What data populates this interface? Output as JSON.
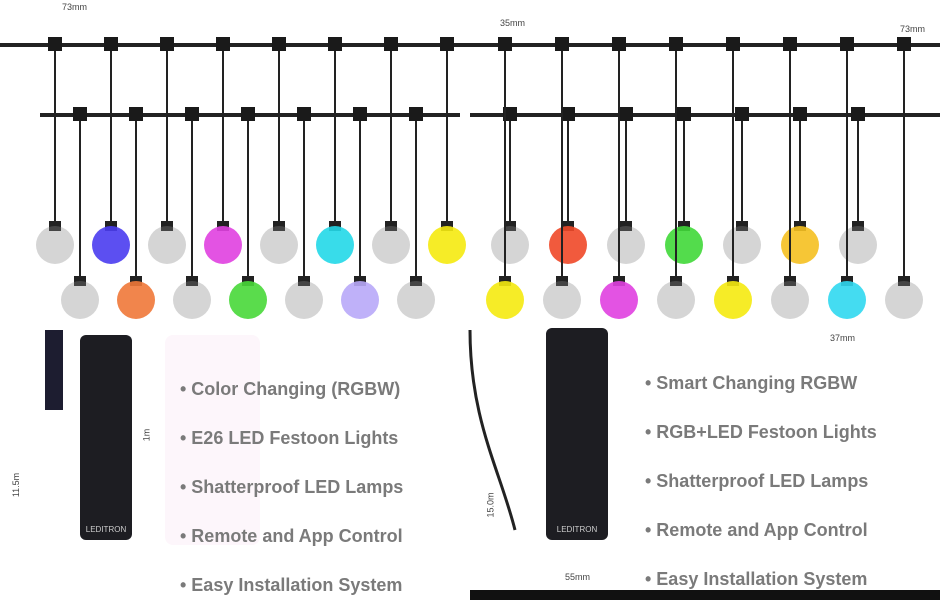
{
  "left_panel": {
    "features": [
      "• Color Changing (RGBW)",
      "• E26 LED Festoon Lights",
      "• Shatterproof LED Lamps",
      "• Remote and App Control",
      "• Easy Installation System"
    ],
    "bulb_colors_row1": [
      "#888",
      "#4a3cf0",
      "#888",
      "#e040e0",
      "#888",
      "#22d8e8",
      "#888",
      "#f5ea10"
    ],
    "bulb_colors_row2": [
      "#888",
      "#f07838",
      "#888",
      "#48d838",
      "#888",
      "#b8a8f8",
      "#888"
    ],
    "remote_brand": "LEDITRON",
    "dimensions": [
      "73mm",
      "11.5m",
      "1m"
    ]
  },
  "right_panel": {
    "features": [
      "• Smart Changing RGBW",
      "• RGB+LED Festoon Lights",
      "• Shatterproof LED Lamps",
      "• Remote and App Control",
      "• Easy Installation System"
    ],
    "bulb_colors_row1": [
      "#888",
      "#f04828",
      "#888",
      "#40d838",
      "#888",
      "#f5c020",
      "#888"
    ],
    "bulb_colors_row2": [
      "#f5ea10",
      "#888",
      "#e040e0",
      "#888",
      "#f5ea10",
      "#888",
      "#30d8f0",
      "#888"
    ],
    "remote_brand": "LEDITRON",
    "dimensions": [
      "35mm",
      "73mm",
      "15.0m",
      "55mm",
      "37mm"
    ]
  }
}
